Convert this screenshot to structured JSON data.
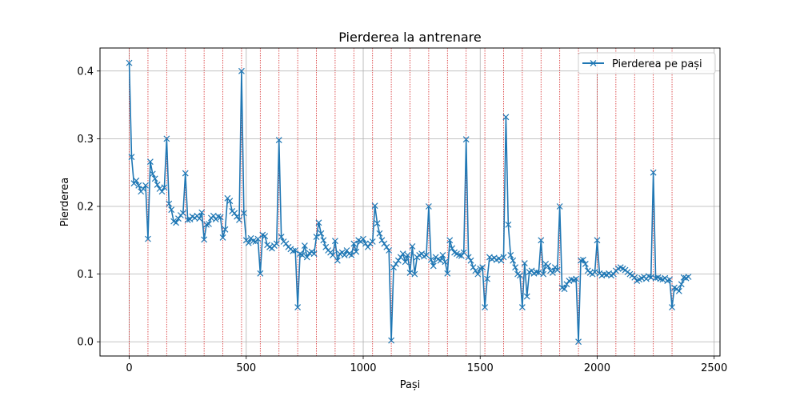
{
  "chart_data": {
    "type": "line",
    "title": "Pierderea la antrenare",
    "xlabel": "Pași",
    "ylabel": "Pierderea",
    "xlim": [
      -125,
      2525
    ],
    "ylim": [
      -0.021,
      0.434
    ],
    "xticks": [
      0,
      500,
      1000,
      1500,
      2000,
      2500
    ],
    "xtick_labels": [
      "0",
      "500",
      "1000",
      "1500",
      "2000",
      "2500"
    ],
    "yticks": [
      0.0,
      0.1,
      0.2,
      0.3,
      0.4
    ],
    "ytick_labels": [
      "0.0",
      "0.1",
      "0.2",
      "0.3",
      "0.4"
    ],
    "grid": true,
    "legend_position": "top-right",
    "series_color": "#1f77b4",
    "vline_color": "#d62728",
    "vlines_x": [
      0,
      80,
      160,
      240,
      320,
      400,
      480,
      560,
      640,
      720,
      800,
      880,
      960,
      1040,
      1120,
      1200,
      1280,
      1360,
      1440,
      1520,
      1600,
      1680,
      1760,
      1840,
      1920,
      2000,
      2080,
      2160,
      2240,
      2320
    ],
    "series": [
      {
        "name": "Pierderea pe pași",
        "marker": "x",
        "points": [
          [
            0,
            0.412
          ],
          [
            10,
            0.273
          ],
          [
            20,
            0.234
          ],
          [
            30,
            0.238
          ],
          [
            40,
            0.231
          ],
          [
            50,
            0.222
          ],
          [
            60,
            0.226
          ],
          [
            70,
            0.231
          ],
          [
            80,
            0.152
          ],
          [
            90,
            0.266
          ],
          [
            100,
            0.248
          ],
          [
            110,
            0.241
          ],
          [
            120,
            0.232
          ],
          [
            130,
            0.226
          ],
          [
            140,
            0.222
          ],
          [
            150,
            0.228
          ],
          [
            160,
            0.3
          ],
          [
            170,
            0.204
          ],
          [
            180,
            0.195
          ],
          [
            190,
            0.178
          ],
          [
            200,
            0.176
          ],
          [
            210,
            0.182
          ],
          [
            220,
            0.187
          ],
          [
            230,
            0.19
          ],
          [
            240,
            0.249
          ],
          [
            250,
            0.18
          ],
          [
            260,
            0.181
          ],
          [
            270,
            0.185
          ],
          [
            280,
            0.183
          ],
          [
            290,
            0.186
          ],
          [
            300,
            0.182
          ],
          [
            310,
            0.191
          ],
          [
            320,
            0.151
          ],
          [
            330,
            0.173
          ],
          [
            340,
            0.174
          ],
          [
            350,
            0.183
          ],
          [
            360,
            0.186
          ],
          [
            370,
            0.181
          ],
          [
            380,
            0.185
          ],
          [
            390,
            0.184
          ],
          [
            400,
            0.154
          ],
          [
            410,
            0.166
          ],
          [
            420,
            0.212
          ],
          [
            430,
            0.208
          ],
          [
            440,
            0.193
          ],
          [
            450,
            0.19
          ],
          [
            460,
            0.185
          ],
          [
            470,
            0.18
          ],
          [
            480,
            0.4
          ],
          [
            490,
            0.19
          ],
          [
            500,
            0.15
          ],
          [
            510,
            0.146
          ],
          [
            520,
            0.153
          ],
          [
            530,
            0.149
          ],
          [
            540,
            0.148
          ],
          [
            550,
            0.152
          ],
          [
            560,
            0.101
          ],
          [
            570,
            0.158
          ],
          [
            580,
            0.156
          ],
          [
            590,
            0.143
          ],
          [
            600,
            0.14
          ],
          [
            610,
            0.138
          ],
          [
            620,
            0.142
          ],
          [
            630,
            0.145
          ],
          [
            640,
            0.298
          ],
          [
            650,
            0.155
          ],
          [
            660,
            0.148
          ],
          [
            670,
            0.145
          ],
          [
            680,
            0.14
          ],
          [
            690,
            0.137
          ],
          [
            700,
            0.134
          ],
          [
            710,
            0.135
          ],
          [
            720,
            0.051
          ],
          [
            730,
            0.13
          ],
          [
            740,
            0.128
          ],
          [
            750,
            0.142
          ],
          [
            760,
            0.125
          ],
          [
            770,
            0.131
          ],
          [
            780,
            0.133
          ],
          [
            790,
            0.13
          ],
          [
            800,
            0.155
          ],
          [
            810,
            0.176
          ],
          [
            820,
            0.16
          ],
          [
            830,
            0.15
          ],
          [
            840,
            0.14
          ],
          [
            850,
            0.135
          ],
          [
            860,
            0.132
          ],
          [
            870,
            0.128
          ],
          [
            880,
            0.149
          ],
          [
            890,
            0.12
          ],
          [
            900,
            0.13
          ],
          [
            910,
            0.132
          ],
          [
            920,
            0.128
          ],
          [
            930,
            0.135
          ],
          [
            940,
            0.13
          ],
          [
            950,
            0.128
          ],
          [
            960,
            0.145
          ],
          [
            970,
            0.133
          ],
          [
            980,
            0.15
          ],
          [
            990,
            0.148
          ],
          [
            1000,
            0.152
          ],
          [
            1010,
            0.145
          ],
          [
            1020,
            0.14
          ],
          [
            1030,
            0.145
          ],
          [
            1040,
            0.148
          ],
          [
            1050,
            0.201
          ],
          [
            1060,
            0.175
          ],
          [
            1070,
            0.16
          ],
          [
            1080,
            0.15
          ],
          [
            1090,
            0.145
          ],
          [
            1100,
            0.14
          ],
          [
            1110,
            0.135
          ],
          [
            1120,
            0.002
          ],
          [
            1130,
            0.11
          ],
          [
            1140,
            0.115
          ],
          [
            1150,
            0.12
          ],
          [
            1160,
            0.125
          ],
          [
            1170,
            0.13
          ],
          [
            1180,
            0.118
          ],
          [
            1190,
            0.128
          ],
          [
            1200,
            0.102
          ],
          [
            1210,
            0.141
          ],
          [
            1220,
            0.1
          ],
          [
            1230,
            0.125
          ],
          [
            1240,
            0.128
          ],
          [
            1250,
            0.13
          ],
          [
            1260,
            0.126
          ],
          [
            1270,
            0.128
          ],
          [
            1280,
            0.2
          ],
          [
            1290,
            0.121
          ],
          [
            1300,
            0.112
          ],
          [
            1310,
            0.125
          ],
          [
            1320,
            0.122
          ],
          [
            1330,
            0.12
          ],
          [
            1340,
            0.128
          ],
          [
            1350,
            0.118
          ],
          [
            1360,
            0.101
          ],
          [
            1370,
            0.15
          ],
          [
            1380,
            0.138
          ],
          [
            1390,
            0.132
          ],
          [
            1400,
            0.13
          ],
          [
            1410,
            0.128
          ],
          [
            1420,
            0.127
          ],
          [
            1430,
            0.132
          ],
          [
            1440,
            0.299
          ],
          [
            1450,
            0.125
          ],
          [
            1460,
            0.12
          ],
          [
            1470,
            0.11
          ],
          [
            1480,
            0.105
          ],
          [
            1490,
            0.1
          ],
          [
            1500,
            0.108
          ],
          [
            1510,
            0.11
          ],
          [
            1520,
            0.051
          ],
          [
            1530,
            0.093
          ],
          [
            1540,
            0.125
          ],
          [
            1550,
            0.122
          ],
          [
            1560,
            0.124
          ],
          [
            1570,
            0.121
          ],
          [
            1580,
            0.123
          ],
          [
            1590,
            0.12
          ],
          [
            1600,
            0.125
          ],
          [
            1610,
            0.332
          ],
          [
            1620,
            0.173
          ],
          [
            1630,
            0.128
          ],
          [
            1640,
            0.12
          ],
          [
            1650,
            0.11
          ],
          [
            1660,
            0.1
          ],
          [
            1670,
            0.098
          ],
          [
            1680,
            0.051
          ],
          [
            1690,
            0.116
          ],
          [
            1700,
            0.067
          ],
          [
            1710,
            0.103
          ],
          [
            1720,
            0.105
          ],
          [
            1730,
            0.101
          ],
          [
            1740,
            0.103
          ],
          [
            1750,
            0.102
          ],
          [
            1760,
            0.15
          ],
          [
            1770,
            0.1
          ],
          [
            1780,
            0.115
          ],
          [
            1790,
            0.112
          ],
          [
            1800,
            0.105
          ],
          [
            1810,
            0.102
          ],
          [
            1820,
            0.11
          ],
          [
            1830,
            0.106
          ],
          [
            1840,
            0.2
          ],
          [
            1850,
            0.08
          ],
          [
            1860,
            0.078
          ],
          [
            1870,
            0.085
          ],
          [
            1880,
            0.09
          ],
          [
            1890,
            0.092
          ],
          [
            1900,
            0.091
          ],
          [
            1910,
            0.093
          ],
          [
            1920,
            0.0
          ],
          [
            1930,
            0.12
          ],
          [
            1940,
            0.121
          ],
          [
            1950,
            0.115
          ],
          [
            1960,
            0.105
          ],
          [
            1970,
            0.102
          ],
          [
            1980,
            0.1
          ],
          [
            1990,
            0.103
          ],
          [
            2000,
            0.15
          ],
          [
            2010,
            0.101
          ],
          [
            2020,
            0.098
          ],
          [
            2030,
            0.1
          ],
          [
            2040,
            0.099
          ],
          [
            2050,
            0.101
          ],
          [
            2060,
            0.098
          ],
          [
            2070,
            0.1
          ],
          [
            2080,
            0.105
          ],
          [
            2090,
            0.108
          ],
          [
            2100,
            0.11
          ],
          [
            2110,
            0.108
          ],
          [
            2120,
            0.106
          ],
          [
            2130,
            0.103
          ],
          [
            2140,
            0.1
          ],
          [
            2150,
            0.098
          ],
          [
            2160,
            0.095
          ],
          [
            2170,
            0.09
          ],
          [
            2180,
            0.092
          ],
          [
            2190,
            0.094
          ],
          [
            2200,
            0.096
          ],
          [
            2210,
            0.093
          ],
          [
            2220,
            0.097
          ],
          [
            2230,
            0.095
          ],
          [
            2240,
            0.25
          ],
          [
            2250,
            0.094
          ],
          [
            2260,
            0.095
          ],
          [
            2270,
            0.093
          ],
          [
            2280,
            0.092
          ],
          [
            2290,
            0.094
          ],
          [
            2300,
            0.09
          ],
          [
            2310,
            0.092
          ],
          [
            2320,
            0.051
          ],
          [
            2330,
            0.08
          ],
          [
            2340,
            0.078
          ],
          [
            2350,
            0.075
          ],
          [
            2360,
            0.085
          ],
          [
            2370,
            0.095
          ],
          [
            2380,
            0.094
          ],
          [
            2390,
            0.096
          ]
        ]
      }
    ]
  }
}
